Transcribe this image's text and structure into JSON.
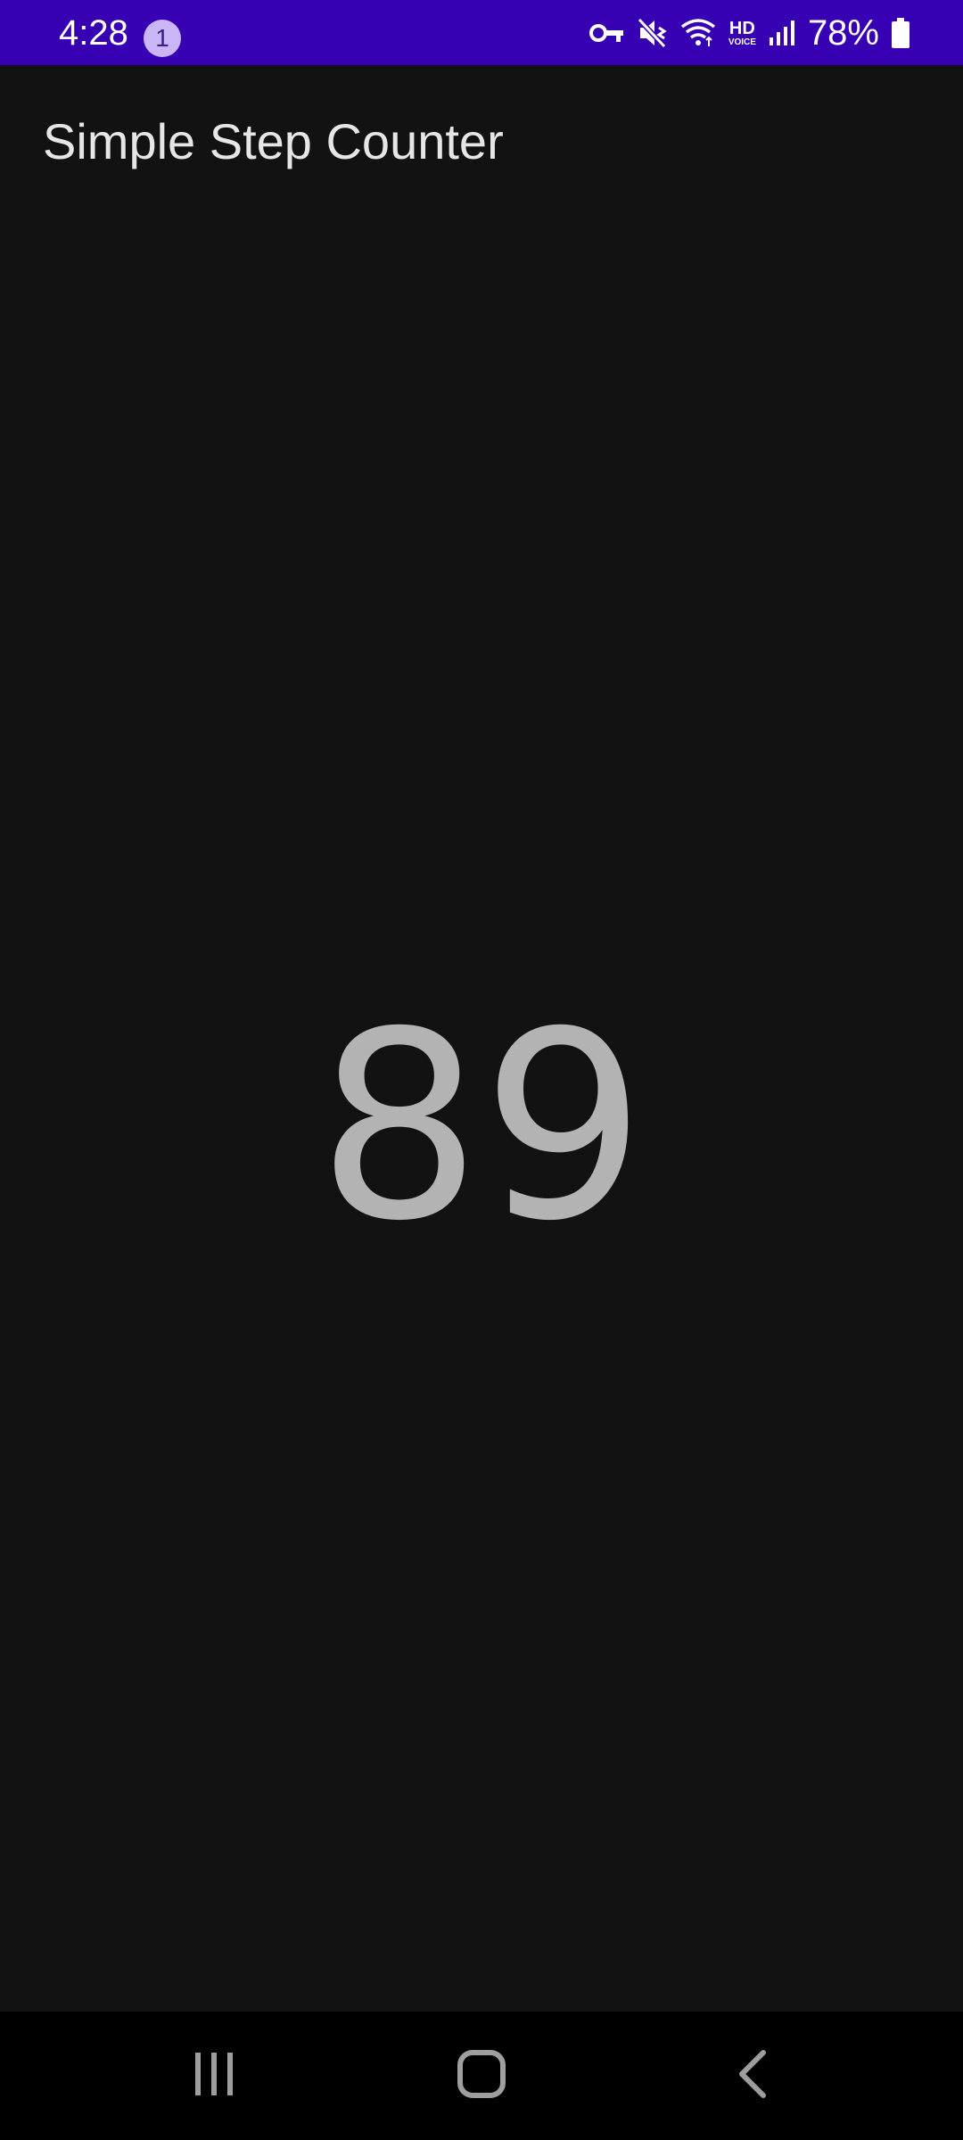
{
  "status_bar": {
    "time": "4:28",
    "notification_count": "1",
    "battery_percent": "78%",
    "network_label": "HD",
    "network_sublabel": "VOICE",
    "icons": [
      "vpn-key-icon",
      "mute-icon",
      "wifi-icon",
      "hd-voice-icon",
      "signal-icon",
      "battery-icon"
    ],
    "background_color": "#3700b3"
  },
  "app": {
    "title": "Simple Step Counter",
    "step_count": "89",
    "background_color": "#121212",
    "count_color": "#b3b3b3"
  },
  "nav_bar": {
    "buttons": [
      "recent-apps-icon",
      "home-icon",
      "back-icon"
    ]
  }
}
